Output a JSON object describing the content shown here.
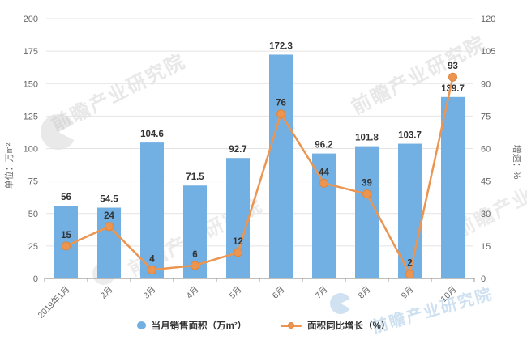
{
  "chart_data": {
    "type": "bar",
    "combo": "bar+line",
    "categories": [
      "2019年1月",
      "2月",
      "3月",
      "4月",
      "5月",
      "6月",
      "7月",
      "8月",
      "9月",
      "10月"
    ],
    "series": [
      {
        "name": "当月销售面积（万m²）",
        "type": "bar",
        "axis": "left",
        "color": "#72AFE2",
        "values": [
          56,
          54.5,
          104.6,
          71.5,
          92.7,
          172.3,
          96.2,
          101.8,
          103.7,
          139.7
        ]
      },
      {
        "name": "面积同比增长（%）",
        "type": "line",
        "axis": "right",
        "color": "#EC9551",
        "point_border": "#E0863C",
        "values": [
          15,
          24,
          4,
          6,
          12,
          76,
          44,
          39,
          2,
          93
        ]
      }
    ],
    "left_axis": {
      "label": "单位：万m²",
      "min": 0,
      "max": 200,
      "step": 25,
      "ticks": [
        0,
        25,
        50,
        75,
        100,
        125,
        150,
        175,
        200
      ]
    },
    "right_axis": {
      "label": "增速：%",
      "min": 0,
      "max": 120,
      "step": 15,
      "ticks": [
        0,
        15,
        30,
        45,
        60,
        75,
        90,
        105,
        120
      ]
    },
    "grid": true,
    "legend_position": "bottom",
    "title": "",
    "xlabel": "",
    "ylabel": "单位：万m²"
  },
  "watermark": {
    "text": "前瞻产业研究院",
    "gray_color": "#bfbfbf",
    "blue_color": "#a9c9e6"
  },
  "colors": {
    "grid_line": "#e4e4e4",
    "axis_line": "#999999",
    "tick_text": "#666666",
    "value_label": "#333333"
  }
}
